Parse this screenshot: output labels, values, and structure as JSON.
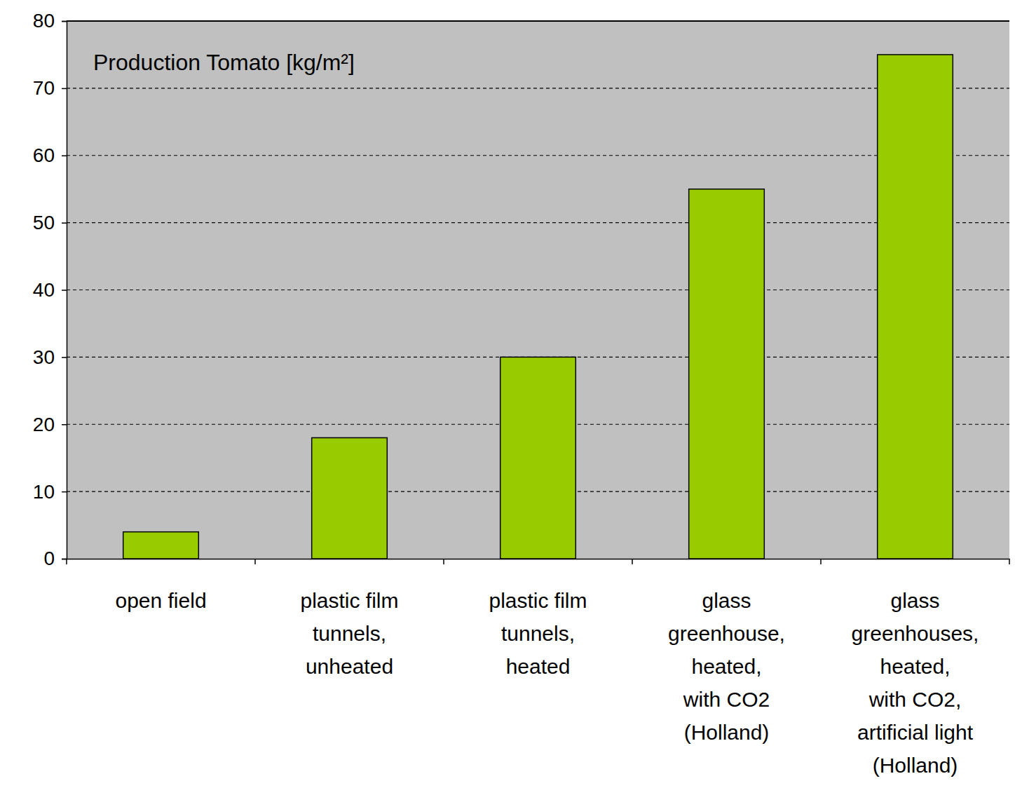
{
  "chart_data": {
    "type": "bar",
    "title": "Production Tomato [kg/m²]",
    "categories": [
      "open field",
      "plastic film\ntunnels,\nunheated",
      "plastic film\ntunnels,\nheated",
      "glass\ngreenhouse,\nheated,\nwith CO2\n(Holland)",
      "glass\ngreenhouses,\nheated,\nwith CO2,\nartificial light\n(Holland)"
    ],
    "values": [
      4,
      18,
      30,
      55,
      75
    ],
    "color": "#99cc00",
    "ylim": [
      0,
      80
    ],
    "yticks": [
      0,
      10,
      20,
      30,
      40,
      50,
      60,
      70,
      80
    ],
    "grid": true
  }
}
